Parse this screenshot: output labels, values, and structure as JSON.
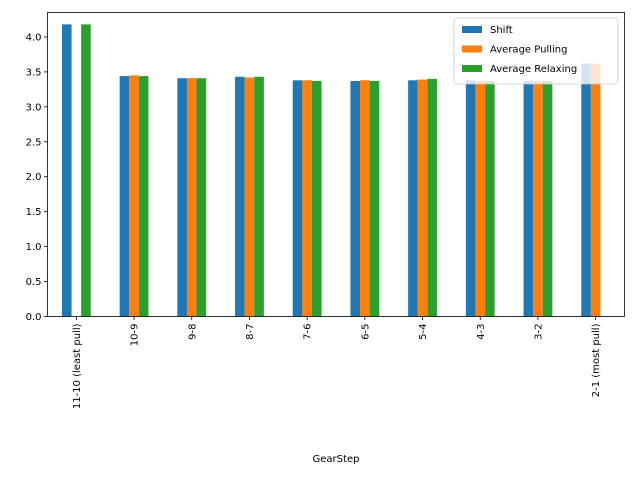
{
  "chart_data": {
    "type": "bar",
    "xlabel": "GearStep",
    "ylabel": "",
    "ylim": [
      0,
      4.35
    ],
    "yticks": [
      "0.0",
      "0.5",
      "1.0",
      "1.5",
      "2.0",
      "2.5",
      "3.0",
      "3.5",
      "4.0"
    ],
    "legend_position": "top-right",
    "grid": false,
    "categories": [
      "11-10 (least pull)",
      "10-9",
      "9-8",
      "8-7",
      "7-6",
      "6-5",
      "5-4",
      "4-3",
      "3-2",
      "2-1 (most pull)"
    ],
    "series": [
      {
        "name": "Shift",
        "color": "#1f77b4",
        "values": [
          4.18,
          3.44,
          3.41,
          3.43,
          3.38,
          3.37,
          3.38,
          3.38,
          3.37,
          3.62
        ]
      },
      {
        "name": "Average Pulling",
        "color": "#ff7f0e",
        "values": [
          null,
          3.45,
          3.41,
          3.42,
          3.38,
          3.38,
          3.39,
          3.37,
          3.37,
          3.62
        ]
      },
      {
        "name": "Average Relaxing",
        "color": "#2ca02c",
        "values": [
          4.18,
          3.44,
          3.41,
          3.43,
          3.37,
          3.37,
          3.4,
          3.37,
          3.37,
          null
        ]
      }
    ]
  }
}
